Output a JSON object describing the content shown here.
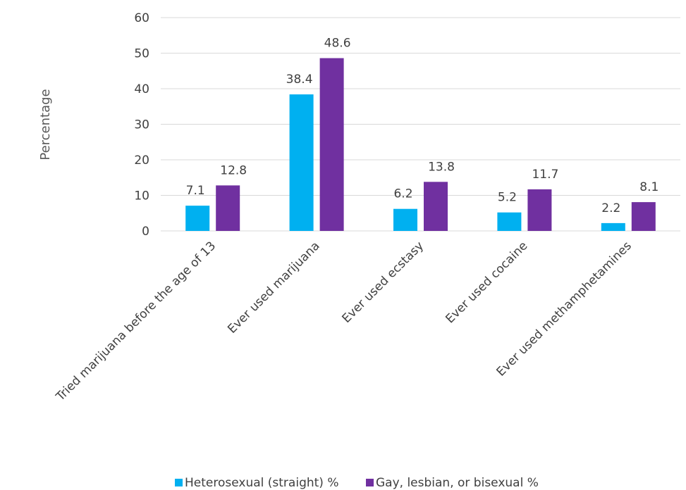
{
  "chart_data": {
    "type": "bar",
    "title": "",
    "xlabel": "",
    "ylabel": "Percentage",
    "ylim": [
      0,
      60
    ],
    "yticks": [
      0,
      10,
      20,
      30,
      40,
      50,
      60
    ],
    "grid": true,
    "legend_position": "bottom",
    "categories": [
      "Tried marijuana before the age of 13",
      "Ever used marijuana",
      "Ever used ecstasy",
      "Ever used cocaine",
      "Ever used methamphetamines"
    ],
    "series": [
      {
        "name": "Heterosexual (straight) %",
        "color": "#00b0f0",
        "values": [
          7.1,
          38.4,
          6.2,
          5.2,
          2.2
        ],
        "labels": [
          "7.1",
          "38.4",
          "6.2",
          "5.2",
          "2.2"
        ]
      },
      {
        "name": "Gay, lesbian, or bisexual %",
        "color": "#7030a0",
        "values": [
          12.8,
          48.6,
          13.8,
          11.7,
          8.1
        ],
        "labels": [
          "12.8",
          "48.6",
          "13.8",
          "11.7",
          "8.1"
        ]
      }
    ]
  }
}
